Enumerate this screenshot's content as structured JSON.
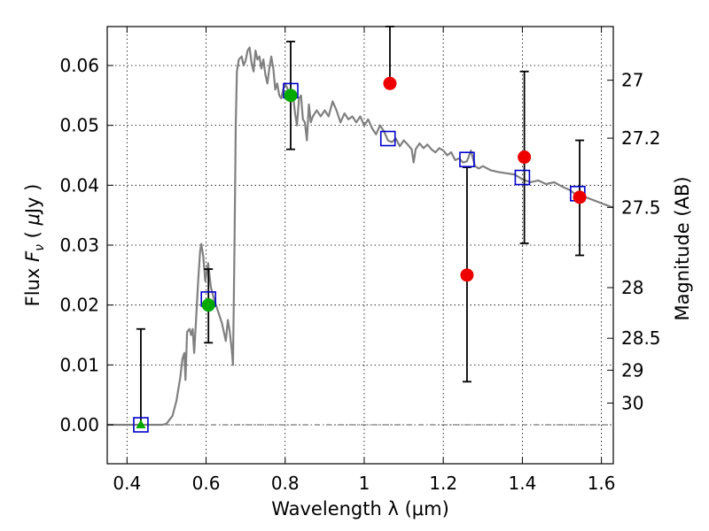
{
  "chart_data": {
    "type": "scatter",
    "xlabel": "Wavelength  λ (μm)",
    "ylabel": "Flux  Fν  ( μJy )",
    "ylabel_parts": [
      "Flux  ",
      "F",
      "ν",
      "  ( ",
      "μ",
      "Jy )"
    ],
    "y2label": "Magnitude (AB)",
    "xlim": [
      0.35,
      1.63
    ],
    "ylim": [
      -0.0065,
      0.0665
    ],
    "grid": true,
    "x_ticks": [
      0.4,
      0.6,
      0.8,
      1.0,
      1.2,
      1.4,
      1.6
    ],
    "x_tick_labels": [
      "0.4",
      "0.6",
      "0.8",
      "1",
      "1.2",
      "1.4",
      "1.6"
    ],
    "y_ticks": [
      0,
      0.01,
      0.02,
      0.03,
      0.04,
      0.05,
      0.06
    ],
    "y_tick_labels": [
      "0.00",
      "0.01",
      "0.02",
      "0.03",
      "0.04",
      "0.05",
      "0.06"
    ],
    "magnitude_ticks": [
      {
        "label": "27",
        "mag": 27.0
      },
      {
        "label": "27.2",
        "mag": 27.2
      },
      {
        "label": "27.5",
        "mag": 27.5
      },
      {
        "label": "28",
        "mag": 28.0
      },
      {
        "label": "28.5",
        "mag": 28.5
      },
      {
        "label": "29",
        "mag": 29.0
      },
      {
        "label": "30",
        "mag": 30.0
      }
    ],
    "colors": {
      "model": "#808080",
      "model_squares": "#0000cc",
      "observed": "#ee0000",
      "green": "#00aa00",
      "errorbar": "#000000",
      "zero_line": "#555555"
    },
    "model_spectrum": [
      [
        0.35,
        0.0
      ],
      [
        0.49,
        0.0
      ],
      [
        0.5,
        0.0002
      ],
      [
        0.515,
        0.0015
      ],
      [
        0.525,
        0.004
      ],
      [
        0.535,
        0.008
      ],
      [
        0.54,
        0.011
      ],
      [
        0.545,
        0.012
      ],
      [
        0.548,
        0.0075
      ],
      [
        0.552,
        0.0155
      ],
      [
        0.558,
        0.016
      ],
      [
        0.562,
        0.015
      ],
      [
        0.566,
        0.016
      ],
      [
        0.57,
        0.012
      ],
      [
        0.575,
        0.018
      ],
      [
        0.58,
        0.024
      ],
      [
        0.585,
        0.029
      ],
      [
        0.588,
        0.0302
      ],
      [
        0.593,
        0.028
      ],
      [
        0.598,
        0.024
      ],
      [
        0.605,
        0.027
      ],
      [
        0.612,
        0.023
      ],
      [
        0.62,
        0.021
      ],
      [
        0.63,
        0.019
      ],
      [
        0.64,
        0.017
      ],
      [
        0.65,
        0.014
      ],
      [
        0.655,
        0.0175
      ],
      [
        0.66,
        0.0155
      ],
      [
        0.665,
        0.0125
      ],
      [
        0.668,
        0.01
      ],
      [
        0.672,
        0.03
      ],
      [
        0.675,
        0.05
      ],
      [
        0.678,
        0.059
      ],
      [
        0.683,
        0.061
      ],
      [
        0.69,
        0.0615
      ],
      [
        0.695,
        0.06
      ],
      [
        0.7,
        0.0608
      ],
      [
        0.705,
        0.0625
      ],
      [
        0.71,
        0.063
      ],
      [
        0.715,
        0.0605
      ],
      [
        0.72,
        0.059
      ],
      [
        0.725,
        0.0625
      ],
      [
        0.73,
        0.061
      ],
      [
        0.735,
        0.0615
      ],
      [
        0.74,
        0.0595
      ],
      [
        0.745,
        0.061
      ],
      [
        0.75,
        0.0585
      ],
      [
        0.755,
        0.057
      ],
      [
        0.76,
        0.0595
      ],
      [
        0.765,
        0.0615
      ],
      [
        0.77,
        0.0595
      ],
      [
        0.775,
        0.056
      ],
      [
        0.78,
        0.057
      ],
      [
        0.785,
        0.055
      ],
      [
        0.79,
        0.0545
      ],
      [
        0.795,
        0.056
      ],
      [
        0.8,
        0.057
      ],
      [
        0.81,
        0.0555
      ],
      [
        0.82,
        0.055
      ],
      [
        0.825,
        0.052
      ],
      [
        0.83,
        0.05
      ],
      [
        0.835,
        0.0545
      ],
      [
        0.84,
        0.055
      ],
      [
        0.845,
        0.051
      ],
      [
        0.85,
        0.0505
      ],
      [
        0.855,
        0.0475
      ],
      [
        0.86,
        0.0535
      ],
      [
        0.865,
        0.0505
      ],
      [
        0.87,
        0.0515
      ],
      [
        0.88,
        0.0525
      ],
      [
        0.89,
        0.0515
      ],
      [
        0.9,
        0.0525
      ],
      [
        0.91,
        0.0515
      ],
      [
        0.92,
        0.054
      ],
      [
        0.93,
        0.0525
      ],
      [
        0.94,
        0.0505
      ],
      [
        0.95,
        0.052
      ],
      [
        0.96,
        0.051
      ],
      [
        0.97,
        0.0515
      ],
      [
        0.98,
        0.0505
      ],
      [
        0.99,
        0.0515
      ],
      [
        1.0,
        0.05
      ],
      [
        1.01,
        0.051
      ],
      [
        1.02,
        0.0495
      ],
      [
        1.03,
        0.0485
      ],
      [
        1.04,
        0.05
      ],
      [
        1.05,
        0.049
      ],
      [
        1.06,
        0.0475
      ],
      [
        1.07,
        0.0472
      ],
      [
        1.08,
        0.0478
      ],
      [
        1.09,
        0.0465
      ],
      [
        1.1,
        0.0475
      ],
      [
        1.11,
        0.0468
      ],
      [
        1.12,
        0.046
      ],
      [
        1.125,
        0.0438
      ],
      [
        1.13,
        0.046
      ],
      [
        1.14,
        0.047
      ],
      [
        1.15,
        0.0462
      ],
      [
        1.16,
        0.0468
      ],
      [
        1.17,
        0.046
      ],
      [
        1.18,
        0.0455
      ],
      [
        1.19,
        0.0462
      ],
      [
        1.2,
        0.0458
      ],
      [
        1.21,
        0.045
      ],
      [
        1.22,
        0.0455
      ],
      [
        1.23,
        0.0442
      ],
      [
        1.24,
        0.0445
      ],
      [
        1.25,
        0.0438
      ],
      [
        1.26,
        0.044
      ],
      [
        1.27,
        0.0458
      ],
      [
        1.28,
        0.0432
      ],
      [
        1.29,
        0.0428
      ],
      [
        1.3,
        0.0432
      ],
      [
        1.32,
        0.0425
      ],
      [
        1.34,
        0.0422
      ],
      [
        1.36,
        0.042
      ],
      [
        1.38,
        0.0418
      ],
      [
        1.4,
        0.041
      ],
      [
        1.42,
        0.0405
      ],
      [
        1.44,
        0.0408
      ],
      [
        1.46,
        0.0402
      ],
      [
        1.48,
        0.0405
      ],
      [
        1.5,
        0.0398
      ],
      [
        1.52,
        0.0392
      ],
      [
        1.54,
        0.0382
      ],
      [
        1.56,
        0.038
      ],
      [
        1.58,
        0.0375
      ],
      [
        1.6,
        0.037
      ],
      [
        1.62,
        0.0365
      ],
      [
        1.63,
        0.0363
      ]
    ],
    "model_photometry": [
      {
        "x": 0.435,
        "y": 0.0
      },
      {
        "x": 0.606,
        "y": 0.021
      },
      {
        "x": 0.814,
        "y": 0.0558
      },
      {
        "x": 1.06,
        "y": 0.0478
      },
      {
        "x": 1.26,
        "y": 0.0443
      },
      {
        "x": 1.4,
        "y": 0.0413
      },
      {
        "x": 1.54,
        "y": 0.0386
      }
    ],
    "errorbars": [
      {
        "x": 0.435,
        "y": 0.0,
        "lo": 0.0,
        "hi": 0.016
      },
      {
        "x": 0.606,
        "y": 0.02,
        "lo": 0.0137,
        "hi": 0.026
      },
      {
        "x": 0.814,
        "y": 0.055,
        "lo": 0.046,
        "hi": 0.064
      },
      {
        "x": 1.065,
        "y": 0.057,
        "lo": 0.057,
        "hi": 0.0665
      },
      {
        "x": 1.26,
        "y": 0.025,
        "lo": 0.0072,
        "hi": 0.043
      },
      {
        "x": 1.405,
        "y": 0.0447,
        "lo": 0.0303,
        "hi": 0.059
      },
      {
        "x": 1.545,
        "y": 0.038,
        "lo": 0.0283,
        "hi": 0.0475
      }
    ],
    "observed_points": [
      {
        "x": 1.065,
        "y": 0.057
      },
      {
        "x": 1.26,
        "y": 0.025
      },
      {
        "x": 1.405,
        "y": 0.0447
      },
      {
        "x": 1.545,
        "y": 0.038
      }
    ],
    "green_points": [
      {
        "x": 0.606,
        "y": 0.02
      },
      {
        "x": 0.814,
        "y": 0.055
      }
    ],
    "green_triangle": [
      {
        "x": 0.435,
        "y": 0.0
      }
    ]
  }
}
